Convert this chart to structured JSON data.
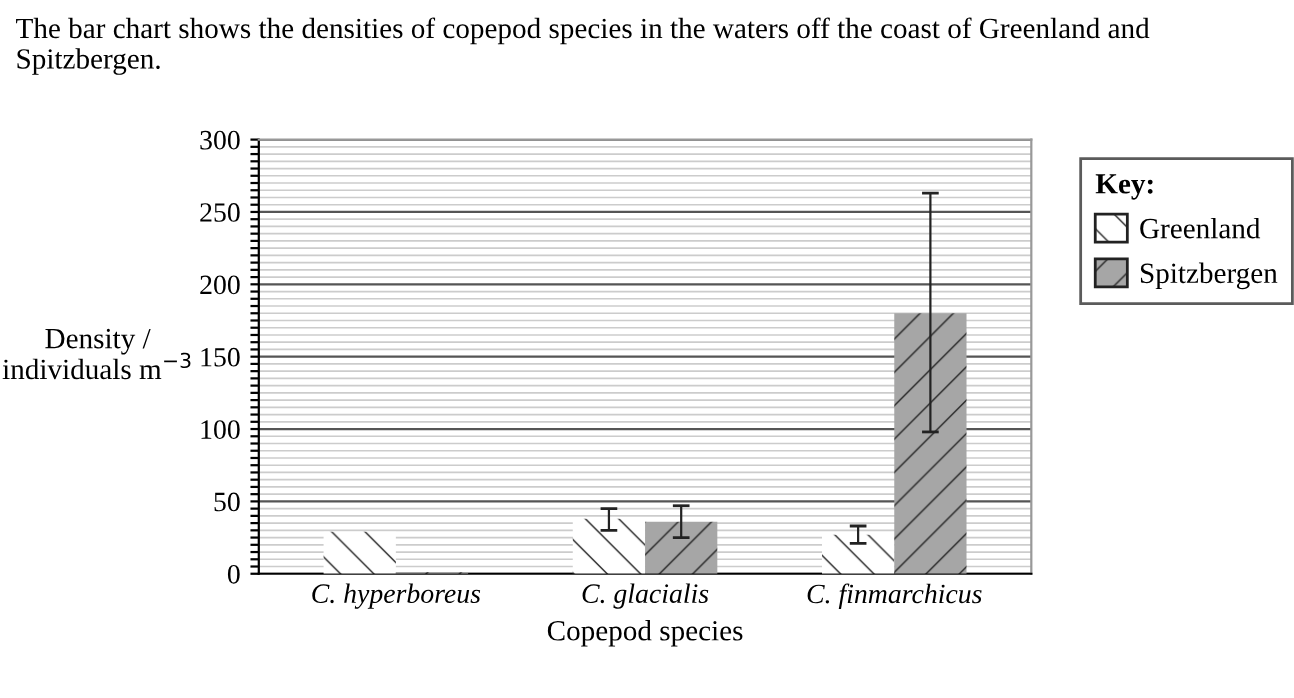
{
  "chart_data": {
    "type": "bar",
    "title": "The bar chart shows the densities of copepod species in the waters off the coast of Greenland and Spitzbergen.",
    "xlabel": "Copepod species",
    "ylabel": "Density /\nindividuals m$^{−3}$",
    "categories": [
      "C. hyperboreus",
      "C. glacialis",
      "C. finmarchicus"
    ],
    "series": [
      {
        "name": "Greenland",
        "color": "#ffffff",
        "values": [
          29,
          38,
          27
        ],
        "errors": [
          null,
          [
            30,
            45
          ],
          [
            21,
            33
          ]
        ]
      },
      {
        "name": "Spitzbergen",
        "color": "#a6a6a6",
        "values": [
          1,
          36,
          180
        ],
        "errors": [
          null,
          [
            25,
            47
          ],
          [
            98,
            263
          ]
        ]
      }
    ],
    "legend_title": "Key:",
    "legend": "top right",
    "grid": "y",
    "ylim": [
      0,
      300
    ],
    "yticks": [
      0,
      {
        "value": 5,
        "label": null
      },
      {
        "value": 10,
        "label": null
      },
      {
        "value": 15,
        "label": null
      },
      {
        "value": 20,
        "label": null
      },
      {
        "value": 25,
        "label": null
      },
      {
        "value": 30,
        "label": null
      },
      {
        "value": 35,
        "label": null
      },
      {
        "value": 40,
        "label": null
      },
      {
        "value": 45,
        "label": null
      },
      50,
      {
        "value": 55,
        "label": null
      },
      {
        "value": 60,
        "label": null
      },
      {
        "value": 65,
        "label": null
      },
      {
        "value": 70,
        "label": null
      },
      {
        "value": 75,
        "label": null
      },
      {
        "value": 80,
        "label": null
      },
      {
        "value": 85,
        "label": null
      },
      {
        "value": 90,
        "label": null
      },
      {
        "value": 95,
        "label": null
      },
      100,
      {
        "value": 105,
        "label": null
      },
      {
        "value": 110,
        "label": null
      },
      {
        "value": 115,
        "label": null
      },
      {
        "value": 120,
        "label": null
      },
      {
        "value": 125,
        "label": null
      },
      {
        "value": 130,
        "label": null
      },
      {
        "value": 135,
        "label": null
      },
      {
        "value": 140,
        "label": null
      },
      {
        "value": 145,
        "label": null
      },
      150,
      {
        "value": 155,
        "label": null
      },
      {
        "value": 160,
        "label": null
      },
      {
        "value": 165,
        "label": null
      },
      {
        "value": 170,
        "label": null
      },
      {
        "value": 175,
        "label": null
      },
      {
        "value": 180,
        "label": null
      },
      {
        "value": 185,
        "label": null
      },
      {
        "value": 190,
        "label": null
      },
      {
        "value": 195,
        "label": null
      },
      200,
      {
        "value": 205,
        "label": null
      },
      {
        "value": 210,
        "label": null
      },
      {
        "value": 215,
        "label": null
      },
      {
        "value": 220,
        "label": null
      },
      {
        "value": 225,
        "label": null
      },
      {
        "value": 230,
        "label": null
      },
      {
        "value": 235,
        "label": null
      },
      {
        "value": 240,
        "label": null
      },
      {
        "value": 245,
        "label": null
      },
      250,
      {
        "value": 255,
        "label": null
      },
      {
        "value": 260,
        "label": null
      },
      {
        "value": 265,
        "label": null
      },
      {
        "value": 270,
        "label": null
      },
      {
        "value": 275,
        "label": null
      },
      {
        "value": 280,
        "label": null
      },
      {
        "value": 285,
        "label": null
      },
      {
        "value": 290,
        "label": null
      },
      {
        "value": 295,
        "label": null
      },
      300
    ]
  }
}
